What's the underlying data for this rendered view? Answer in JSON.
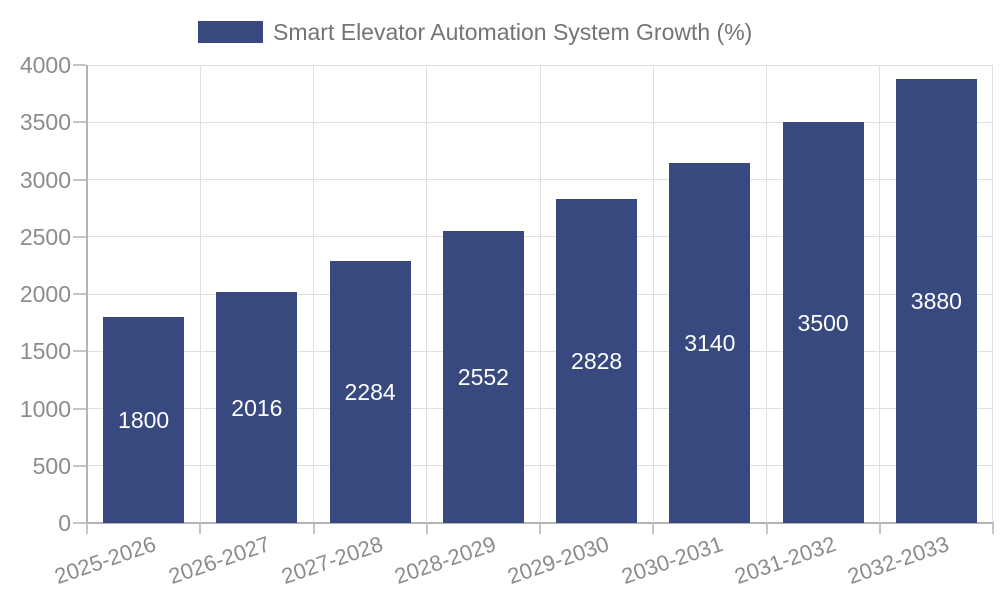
{
  "legend": {
    "label": "Smart Elevator Automation System Growth (%)"
  },
  "chart_data": {
    "type": "bar",
    "title": "Smart Elevator Automation System Growth (%)",
    "categories": [
      "2025-2026",
      "2026-2027",
      "2027-2028",
      "2028-2029",
      "2029-2030",
      "2030-2031",
      "2031-2032",
      "2032-2033"
    ],
    "values": [
      1800,
      2016,
      2284,
      2552,
      2828,
      3140,
      3500,
      3880
    ],
    "xlabel": "",
    "ylabel": "",
    "ylim": [
      0,
      4000
    ],
    "ytick_step": 500,
    "grid": true,
    "legend_position": "top-left",
    "colors": {
      "bar": "#384980",
      "value_label": "#ffffff",
      "axis_label": "#8c8c8c",
      "legend_text": "#747474",
      "gridline": "#e0e0e0",
      "axis_line": "#b3b3b3"
    }
  }
}
